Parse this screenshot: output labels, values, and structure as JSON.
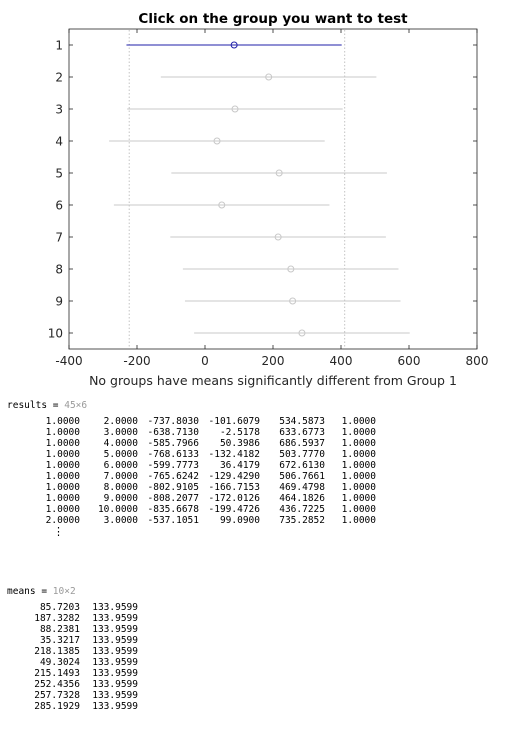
{
  "chart_data": {
    "type": "interval",
    "title": "Click on the group you want to test",
    "xlabel": "No groups have means significantly different from Group 1",
    "ylabel": "",
    "xlim": [
      -400,
      800
    ],
    "xticks": [
      "-400",
      "-200",
      "0",
      "200",
      "400",
      "600",
      "800"
    ],
    "categories": [
      "1",
      "2",
      "3",
      "4",
      "5",
      "6",
      "7",
      "8",
      "9",
      "10"
    ],
    "selected_group": "1",
    "highlight_color": "#1f1fa8",
    "muted_color": "#c8c8c8",
    "reference_lines": [
      -223,
      411
    ],
    "groups": [
      {
        "label": "1",
        "mean": 85.72,
        "low": -231,
        "high": 402
      },
      {
        "label": "2",
        "mean": 187.33,
        "low": -130,
        "high": 504
      },
      {
        "label": "3",
        "mean": 88.24,
        "low": -229,
        "high": 405
      },
      {
        "label": "4",
        "mean": 35.32,
        "low": -282,
        "high": 352
      },
      {
        "label": "5",
        "mean": 218.14,
        "low": -99,
        "high": 535
      },
      {
        "label": "6",
        "mean": 49.3,
        "low": -268,
        "high": 366
      },
      {
        "label": "7",
        "mean": 215.15,
        "low": -102,
        "high": 532
      },
      {
        "label": "8",
        "mean": 252.44,
        "low": -65,
        "high": 569
      },
      {
        "label": "9",
        "mean": 257.73,
        "low": -59,
        "high": 575
      },
      {
        "label": "10",
        "mean": 285.19,
        "low": -32,
        "high": 602
      }
    ]
  },
  "console": {
    "results": {
      "name": "results",
      "eq": " = ",
      "dims": "45×6",
      "rows": [
        [
          "1.0000",
          "2.0000",
          "-737.8030",
          "-101.6079",
          "534.5873",
          "1.0000"
        ],
        [
          "1.0000",
          "3.0000",
          "-638.7130",
          "-2.5178",
          "633.6773",
          "1.0000"
        ],
        [
          "1.0000",
          "4.0000",
          "-585.7966",
          "50.3986",
          "686.5937",
          "1.0000"
        ],
        [
          "1.0000",
          "5.0000",
          "-768.6133",
          "-132.4182",
          "503.7770",
          "1.0000"
        ],
        [
          "1.0000",
          "6.0000",
          "-599.7773",
          "36.4179",
          "672.6130",
          "1.0000"
        ],
        [
          "1.0000",
          "7.0000",
          "-765.6242",
          "-129.4290",
          "506.7661",
          "1.0000"
        ],
        [
          "1.0000",
          "8.0000",
          "-802.9105",
          "-166.7153",
          "469.4798",
          "1.0000"
        ],
        [
          "1.0000",
          "9.0000",
          "-808.2077",
          "-172.0126",
          "464.1826",
          "1.0000"
        ],
        [
          "1.0000",
          "10.0000",
          "-835.6678",
          "-199.4726",
          "436.7225",
          "1.0000"
        ],
        [
          "2.0000",
          "3.0000",
          "-537.1051",
          "99.0900",
          "735.2852",
          "1.0000"
        ]
      ],
      "continuation": "⋮"
    },
    "means": {
      "name": "means",
      "eq": " = ",
      "dims": "10×2",
      "rows": [
        [
          "85.7203",
          "133.9599"
        ],
        [
          "187.3282",
          "133.9599"
        ],
        [
          "88.2381",
          "133.9599"
        ],
        [
          "35.3217",
          "133.9599"
        ],
        [
          "218.1385",
          "133.9599"
        ],
        [
          "49.3024",
          "133.9599"
        ],
        [
          "215.1493",
          "133.9599"
        ],
        [
          "252.4356",
          "133.9599"
        ],
        [
          "257.7328",
          "133.9599"
        ],
        [
          "285.1929",
          "133.9599"
        ]
      ]
    }
  }
}
